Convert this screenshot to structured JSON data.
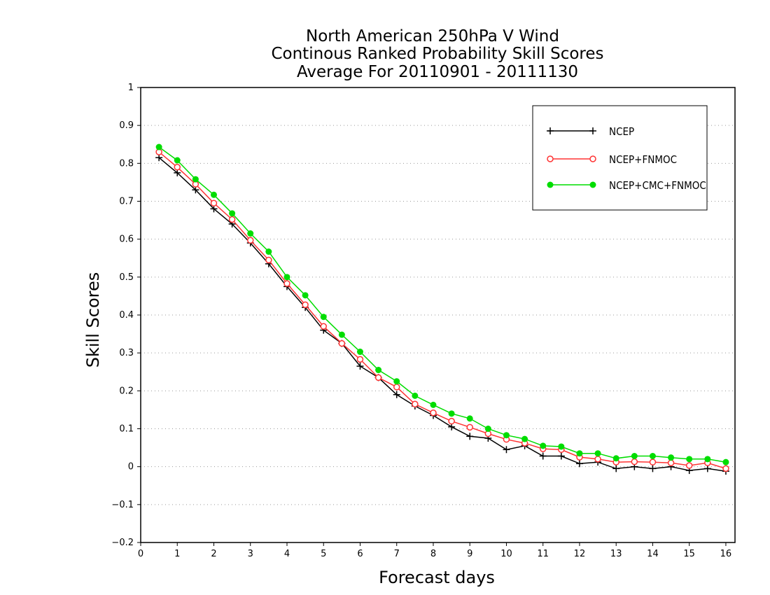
{
  "chart_data": {
    "type": "line",
    "title_lines": [
      "North American 250hPa V Wind",
      "Continous Ranked Probability Skill Scores",
      "Average For 20110901 - 20111130"
    ],
    "xlabel": "Forecast days",
    "ylabel": "Skill Scores",
    "xlim": [
      0,
      16.25
    ],
    "ylim": [
      -0.2,
      1
    ],
    "xticks": [
      0,
      1,
      2,
      3,
      4,
      5,
      6,
      7,
      8,
      9,
      10,
      11,
      12,
      13,
      14,
      15,
      16
    ],
    "xtick_labels": [
      "0",
      "1",
      "2",
      "3",
      "4",
      "5",
      "6",
      "7",
      "8",
      "9",
      "10",
      "11",
      "12",
      "13",
      "14",
      "15",
      "16"
    ],
    "yticks": [
      -0.2,
      -0.1,
      0,
      0.1,
      0.2,
      0.3,
      0.4,
      0.5,
      0.6,
      0.7,
      0.8,
      0.9,
      1
    ],
    "ytick_labels": [
      "−0.2",
      "−0.1",
      "0",
      "0.1",
      "0.2",
      "0.3",
      "0.4",
      "0.5",
      "0.6",
      "0.7",
      "0.8",
      "0.9",
      "1"
    ],
    "grid": "horizontal dotted",
    "legend_position": "top-right",
    "x": [
      0.5,
      1,
      1.5,
      2,
      2.5,
      3,
      3.5,
      4,
      4.5,
      5,
      5.5,
      6,
      6.5,
      7,
      7.5,
      8,
      8.5,
      9,
      9.5,
      10,
      10.5,
      11,
      11.5,
      12,
      12.5,
      13,
      13.5,
      14,
      14.5,
      15,
      15.5,
      16
    ],
    "series": [
      {
        "name": "NCEP",
        "color": "#000000",
        "marker": "plus",
        "values": [
          0.815,
          0.775,
          0.73,
          0.68,
          0.64,
          0.59,
          0.535,
          0.475,
          0.42,
          0.36,
          0.325,
          0.265,
          0.235,
          0.19,
          0.16,
          0.135,
          0.105,
          0.08,
          0.075,
          0.045,
          0.055,
          0.028,
          0.028,
          0.008,
          0.012,
          -0.005,
          0.0,
          -0.005,
          0.0,
          -0.01,
          -0.005,
          -0.012
        ]
      },
      {
        "name": "NCEP+FNMOC",
        "color": "#ff3333",
        "marker": "open-circle",
        "values": [
          0.83,
          0.79,
          0.745,
          0.695,
          0.652,
          0.597,
          0.545,
          0.483,
          0.427,
          0.37,
          0.325,
          0.283,
          0.235,
          0.21,
          0.165,
          0.142,
          0.12,
          0.104,
          0.087,
          0.072,
          0.062,
          0.047,
          0.045,
          0.025,
          0.02,
          0.012,
          0.013,
          0.012,
          0.01,
          0.003,
          0.01,
          -0.005
        ]
      },
      {
        "name": "NCEP+CMC+FNMOC",
        "color": "#00dd00",
        "marker": "filled-circle",
        "values": [
          0.843,
          0.808,
          0.758,
          0.717,
          0.668,
          0.615,
          0.567,
          0.5,
          0.452,
          0.395,
          0.348,
          0.303,
          0.255,
          0.225,
          0.187,
          0.163,
          0.14,
          0.127,
          0.1,
          0.083,
          0.073,
          0.055,
          0.053,
          0.035,
          0.035,
          0.022,
          0.028,
          0.028,
          0.024,
          0.02,
          0.02,
          0.012
        ]
      }
    ]
  }
}
